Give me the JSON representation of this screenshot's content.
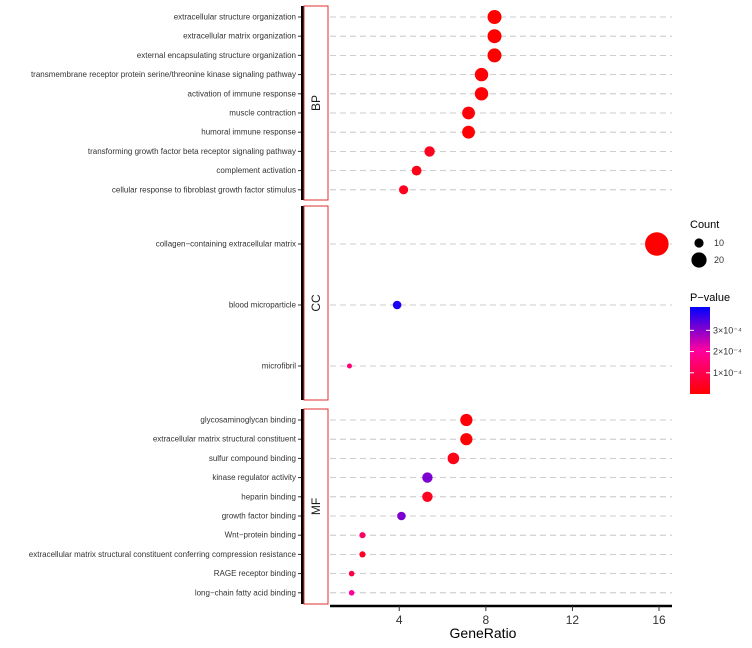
{
  "chart_data": {
    "type": "dot",
    "xlabel": "GeneRatio",
    "xticks": [
      4,
      8,
      12,
      16
    ],
    "xlim": [
      0.8,
      16.6
    ],
    "facets": [
      {
        "name": "BP",
        "terms": [
          {
            "label": "extracellular structure organization",
            "x": 8.4,
            "count": 18,
            "p": 2e-07
          },
          {
            "label": "extracellular matrix organization",
            "x": 8.4,
            "count": 18,
            "p": 2e-07
          },
          {
            "label": "external encapsulating structure organization",
            "x": 8.4,
            "count": 18,
            "p": 2e-07
          },
          {
            "label": "transmembrane receptor protein serine/threonine kinase signaling pathway",
            "x": 7.8,
            "count": 17,
            "p": 5e-06
          },
          {
            "label": "activation of immune response",
            "x": 7.8,
            "count": 17,
            "p": 8e-06
          },
          {
            "label": "muscle contraction",
            "x": 7.2,
            "count": 16,
            "p": 1.2e-05
          },
          {
            "label": "humoral immune response",
            "x": 7.2,
            "count": 16,
            "p": 5e-06
          },
          {
            "label": "transforming growth factor beta receptor signaling pathway",
            "x": 5.4,
            "count": 12,
            "p": 4e-05
          },
          {
            "label": "complement activation",
            "x": 4.8,
            "count": 11,
            "p": 3e-05
          },
          {
            "label": "cellular response to fibroblast growth factor stimulus",
            "x": 4.2,
            "count": 10,
            "p": 4e-05
          }
        ]
      },
      {
        "name": "CC",
        "terms": [
          {
            "label": "collagen−containing extracellular matrix",
            "x": 15.9,
            "count": 34,
            "p": 1e-07
          },
          {
            "label": "blood microparticle",
            "x": 3.9,
            "count": 9,
            "p": 0.00039
          },
          {
            "label": "microfibril",
            "x": 1.7,
            "count": 3,
            "p": 0.00015
          }
        ]
      },
      {
        "name": "MF",
        "terms": [
          {
            "label": "glycosaminoglycan binding",
            "x": 7.1,
            "count": 15,
            "p": 1e-05
          },
          {
            "label": "extracellular matrix structural constituent",
            "x": 7.1,
            "count": 15,
            "p": 5e-06
          },
          {
            "label": "sulfur compound binding",
            "x": 6.5,
            "count": 14,
            "p": 3e-05
          },
          {
            "label": "kinase regulator activity",
            "x": 5.3,
            "count": 12,
            "p": 0.00031
          },
          {
            "label": "heparin binding",
            "x": 5.3,
            "count": 12,
            "p": 4e-05
          },
          {
            "label": "growth factor binding",
            "x": 4.1,
            "count": 9,
            "p": 0.00031
          },
          {
            "label": "Wnt−protein binding",
            "x": 2.3,
            "count": 5,
            "p": 0.00013
          },
          {
            "label": "extracellular matrix structural constituent conferring compression resistance",
            "x": 2.3,
            "count": 5,
            "p": 5e-05
          },
          {
            "label": "RAGE receptor binding",
            "x": 1.8,
            "count": 4,
            "p": 9e-05
          },
          {
            "label": "long−chain fatty acid binding",
            "x": 1.8,
            "count": 4,
            "p": 0.0002
          }
        ]
      }
    ],
    "legend": {
      "count_title": "Count",
      "count_values": [
        10,
        20
      ],
      "pvalue_title": "P−value",
      "pvalue_ticks": [
        {
          "value": 0.0003,
          "label": "3×10⁻⁴"
        },
        {
          "value": 0.0002,
          "label": "2×10⁻⁴"
        },
        {
          "value": 0.0001,
          "label": "1×10⁻⁴"
        }
      ],
      "pvalue_range": [
        0.0,
        0.00041
      ],
      "color_low": "#ff0000",
      "color_high": "#0000ff"
    }
  }
}
